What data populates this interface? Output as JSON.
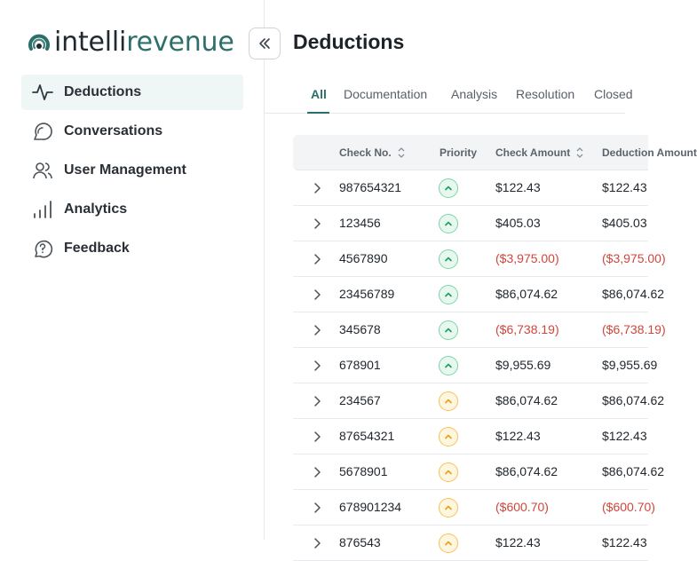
{
  "brand": {
    "part1": "intelli",
    "part2": "revenue",
    "primary": "#2d6f6a",
    "dark": "#1e2a30"
  },
  "sidebar": {
    "items": [
      {
        "label": "Deductions",
        "icon": "activity-icon",
        "active": true
      },
      {
        "label": "Conversations",
        "icon": "chat-bubble-icon",
        "active": false
      },
      {
        "label": "User Management",
        "icon": "users-icon",
        "active": false
      },
      {
        "label": "Analytics",
        "icon": "bar-chart-icon",
        "active": false
      },
      {
        "label": "Feedback",
        "icon": "question-bubble-icon",
        "active": false
      }
    ]
  },
  "main": {
    "title": "Deductions",
    "tabs": [
      "All",
      "Documentation",
      "Analysis",
      "Resolution",
      "Closed"
    ],
    "active_tab": "All"
  },
  "table": {
    "columns": [
      "Check No.",
      "Priority",
      "Check Amount",
      "Deduction Amount"
    ],
    "rows": [
      {
        "check_no": "987654321",
        "priority": "high",
        "check_amount": "$122.43",
        "deduction": "$122.43",
        "negative": false
      },
      {
        "check_no": "123456",
        "priority": "high",
        "check_amount": "$405.03",
        "deduction": "$405.03",
        "negative": false
      },
      {
        "check_no": "4567890",
        "priority": "high",
        "check_amount": "($3,975.00)",
        "deduction": "($3,975.00)",
        "negative": true
      },
      {
        "check_no": "23456789",
        "priority": "high",
        "check_amount": "$86,074.62",
        "deduction": "$86,074.62",
        "negative": false
      },
      {
        "check_no": "345678",
        "priority": "high",
        "check_amount": "($6,738.19)",
        "deduction": "($6,738.19)",
        "negative": true
      },
      {
        "check_no": "678901",
        "priority": "high",
        "check_amount": "$9,955.69",
        "deduction": "$9,955.69",
        "negative": false
      },
      {
        "check_no": "234567",
        "priority": "medium",
        "check_amount": "$86,074.62",
        "deduction": "$86,074.62",
        "negative": false
      },
      {
        "check_no": "87654321",
        "priority": "medium",
        "check_amount": "$122.43",
        "deduction": "$122.43",
        "negative": false
      },
      {
        "check_no": "5678901",
        "priority": "medium",
        "check_amount": "$86,074.62",
        "deduction": "$86,074.62",
        "negative": false
      },
      {
        "check_no": "678901234",
        "priority": "medium",
        "check_amount": "($600.70)",
        "deduction": "($600.70)",
        "negative": true
      },
      {
        "check_no": "876543",
        "priority": "medium",
        "check_amount": "$122.43",
        "deduction": "$122.43",
        "negative": false
      }
    ]
  }
}
